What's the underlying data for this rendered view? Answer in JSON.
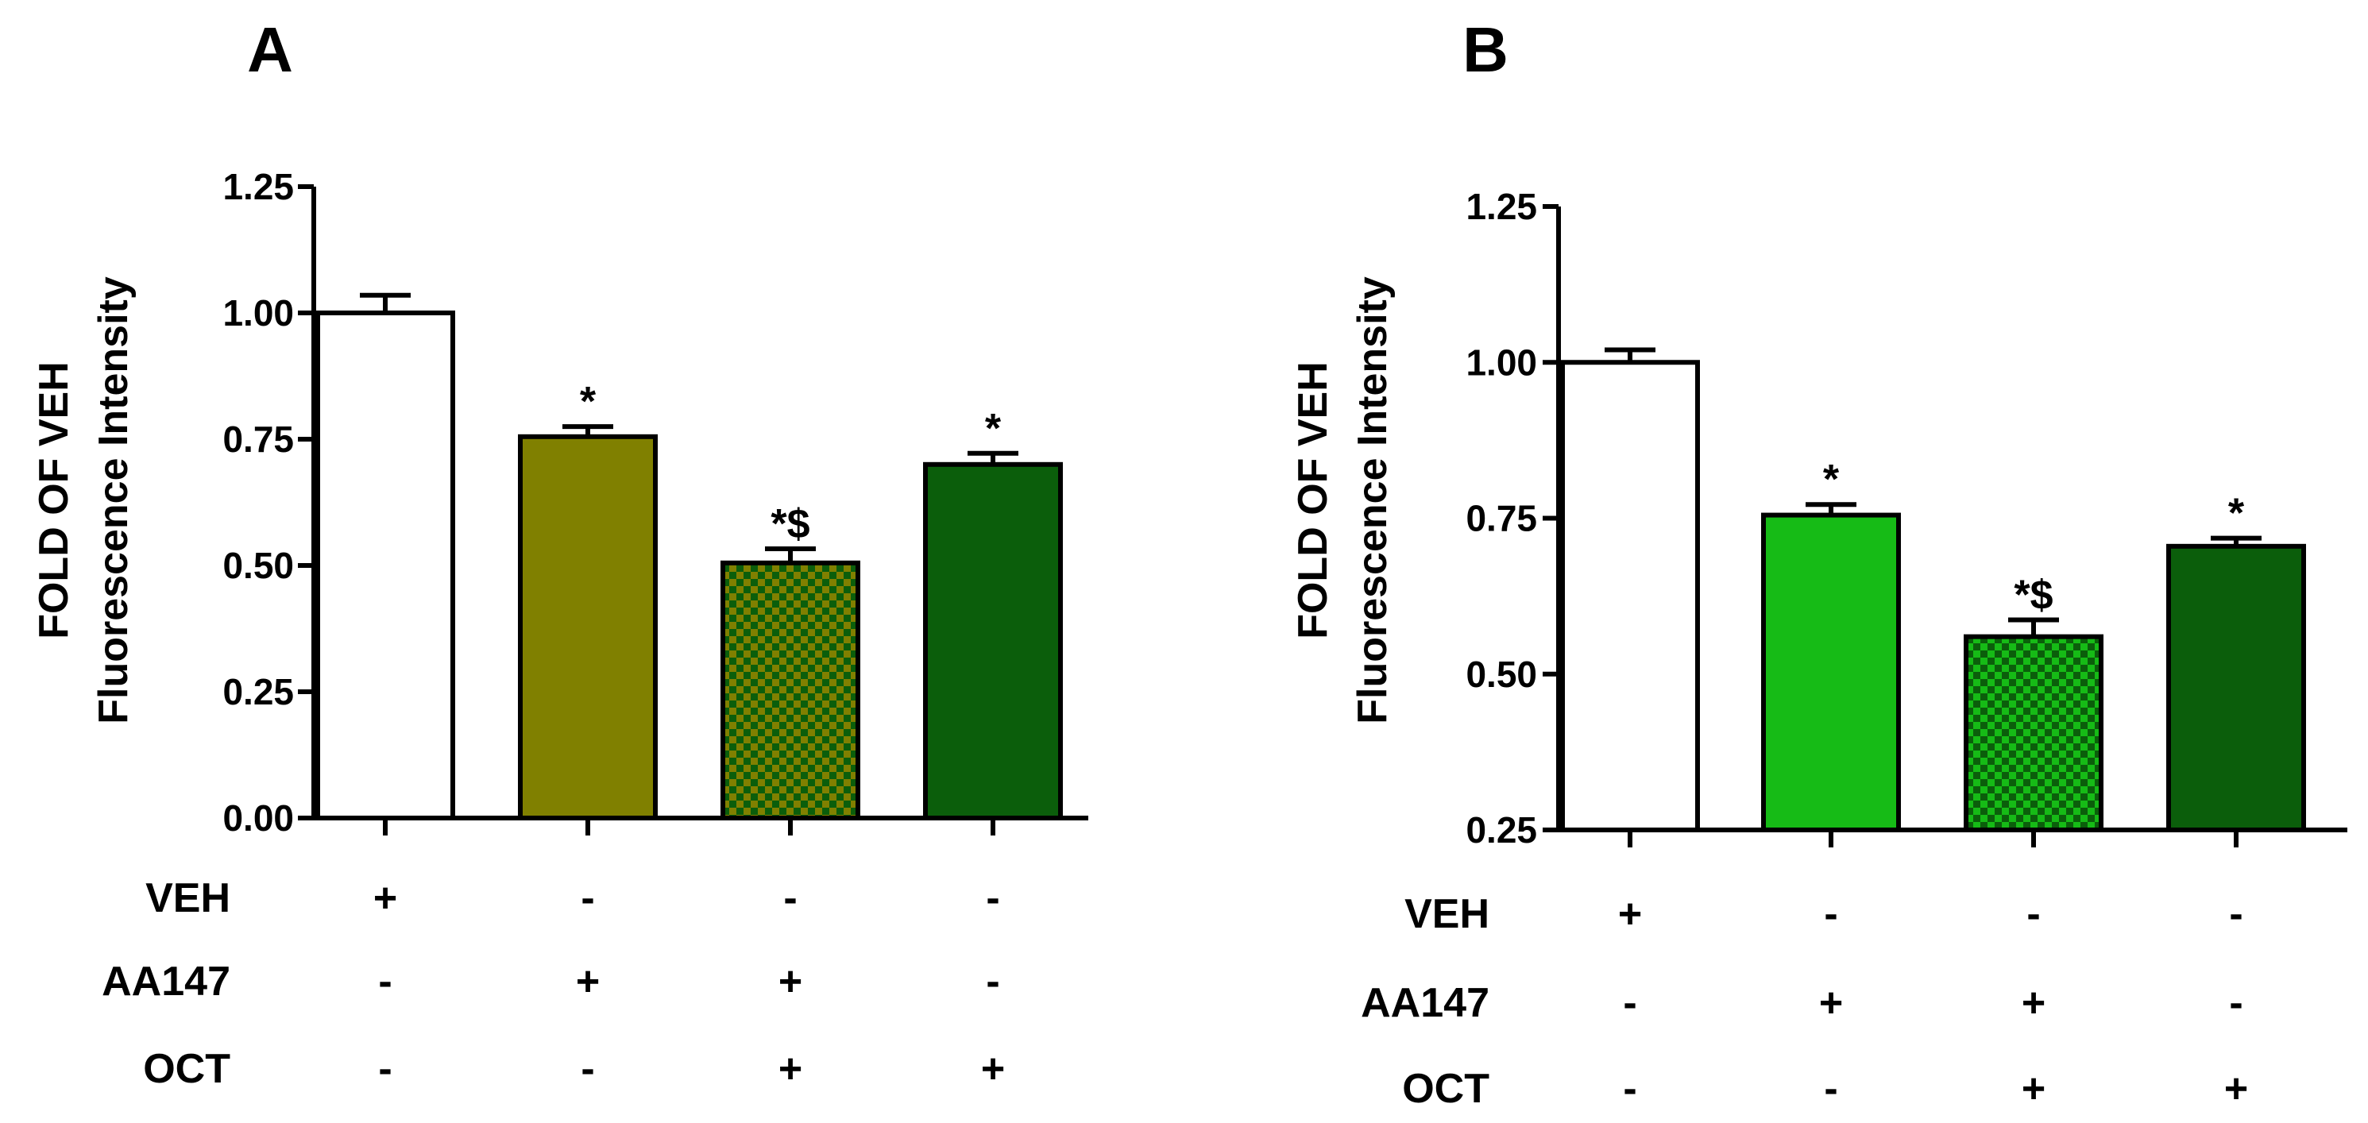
{
  "chart_data": [
    {
      "type": "bar",
      "panel_label": "A",
      "ylabel_line1": "FOLD OF VEH",
      "ylabel_line2": "Fluorescence Intensity",
      "ylim": [
        0,
        1.25
      ],
      "yticks": [
        "0.00",
        "0.25",
        "0.50",
        "0.75",
        "1.00",
        "1.25"
      ],
      "bars": [
        {
          "value": 1.0,
          "error": 0.035,
          "annotation": "",
          "color": "#ffffff",
          "pattern": "solid"
        },
        {
          "value": 0.755,
          "error": 0.02,
          "annotation": "*",
          "color": "#808000",
          "pattern": "solid"
        },
        {
          "value": 0.505,
          "error": 0.028,
          "annotation": "*$",
          "color": "#808000",
          "pattern": "checker"
        },
        {
          "value": 0.7,
          "error": 0.022,
          "annotation": "*",
          "color": "#0b5e0b",
          "pattern": "solid"
        }
      ],
      "treatments": [
        {
          "label": "VEH",
          "signs": [
            "+",
            "-",
            "-",
            "-"
          ]
        },
        {
          "label": "AA147",
          "signs": [
            "-",
            "+",
            "+",
            "-"
          ]
        },
        {
          "label": "OCT",
          "signs": [
            "-",
            "-",
            "+",
            "+"
          ]
        }
      ]
    },
    {
      "type": "bar",
      "panel_label": "B",
      "ylabel_line1": "FOLD OF VEH",
      "ylabel_line2": "Fluorescence Intensity",
      "ylim": [
        0.25,
        1.25
      ],
      "yticks": [
        "0.25",
        "0.50",
        "0.75",
        "1.00",
        "1.25"
      ],
      "bars": [
        {
          "value": 1.0,
          "error": 0.02,
          "annotation": "",
          "color": "#ffffff",
          "pattern": "solid"
        },
        {
          "value": 0.755,
          "error": 0.017,
          "annotation": "*",
          "color": "#16bb16",
          "pattern": "solid"
        },
        {
          "value": 0.56,
          "error": 0.027,
          "annotation": "*$",
          "color": "#16bb16",
          "pattern": "checker"
        },
        {
          "value": 0.705,
          "error": 0.013,
          "annotation": "*",
          "color": "#0b5e0b",
          "pattern": "solid"
        }
      ],
      "treatments": [
        {
          "label": "VEH",
          "signs": [
            "+",
            "-",
            "-",
            "-"
          ]
        },
        {
          "label": "AA147",
          "signs": [
            "-",
            "+",
            "+",
            "-"
          ]
        },
        {
          "label": "OCT",
          "signs": [
            "-",
            "-",
            "+",
            "+"
          ]
        }
      ]
    }
  ]
}
